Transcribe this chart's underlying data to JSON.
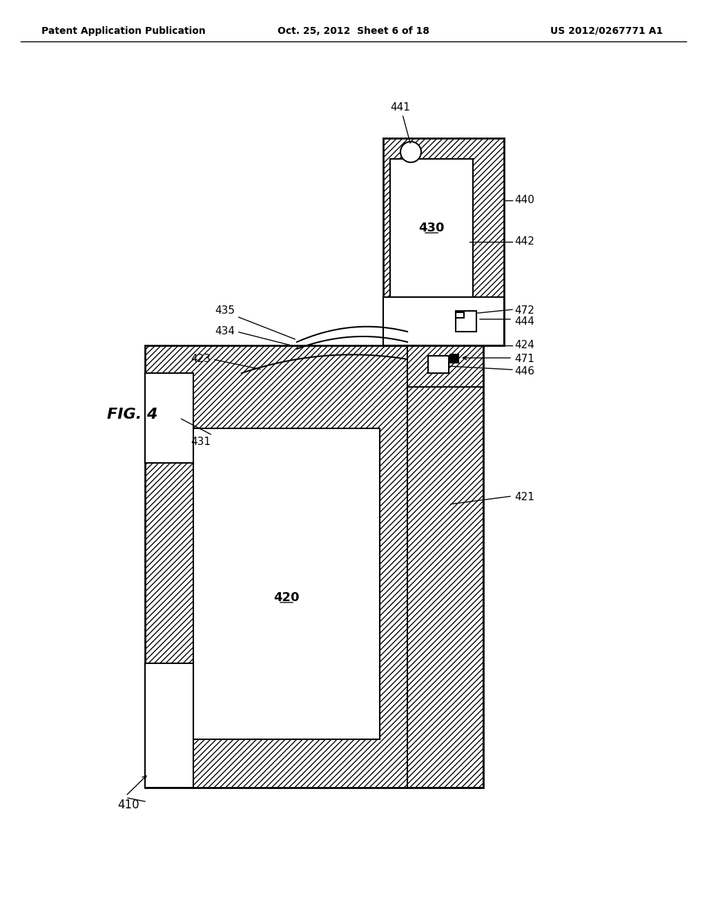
{
  "bg_color": "#ffffff",
  "line_color": "#000000",
  "hatch_color": "#000000",
  "header_left": "Patent Application Publication",
  "header_center": "Oct. 25, 2012  Sheet 6 of 18",
  "header_right": "US 2012/0267771 A1",
  "fig_label": "FIG. 4",
  "ref_410": "410",
  "ref_420": "420",
  "ref_421": "421",
  "ref_423": "423",
  "ref_424": "424",
  "ref_430": "430",
  "ref_431": "431",
  "ref_434": "434",
  "ref_435": "435",
  "ref_440": "440",
  "ref_441": "441",
  "ref_442": "442",
  "ref_444": "444",
  "ref_446": "446",
  "ref_471": "471",
  "ref_472": "472"
}
